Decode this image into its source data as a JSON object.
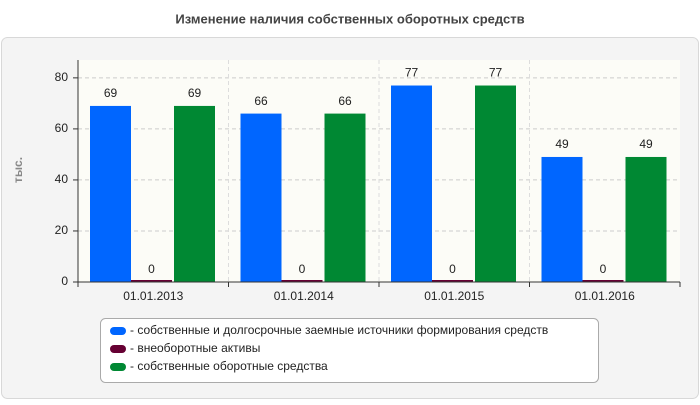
{
  "chart_data": {
    "type": "bar",
    "title": "Изменение наличия собственных оборотных средств",
    "y_label": "тыс.",
    "categories": [
      "01.01.2013",
      "01.01.2014",
      "01.01.2015",
      "01.01.2016"
    ],
    "series": [
      {
        "name": "- собственные и долгосрочные заемные источники формирования средств",
        "color": "#0066ff",
        "values": [
          69,
          66,
          77,
          49
        ]
      },
      {
        "name": "- внеоборотные активы",
        "color": "#660033",
        "values": [
          0,
          0,
          0,
          0
        ]
      },
      {
        "name": "- собственные оборотные средства",
        "color": "#008833",
        "values": [
          69,
          66,
          77,
          49
        ]
      }
    ],
    "ylim": [
      0,
      87
    ],
    "yticks": [
      0,
      20,
      40,
      60,
      80
    ],
    "grid": true
  }
}
